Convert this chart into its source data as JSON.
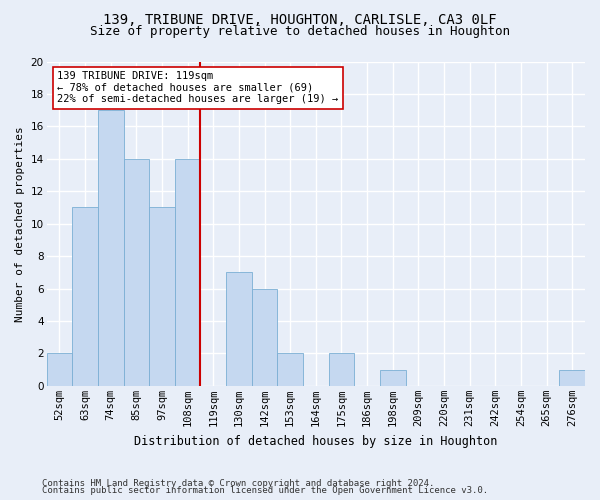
{
  "title1": "139, TRIBUNE DRIVE, HOUGHTON, CARLISLE, CA3 0LF",
  "title2": "Size of property relative to detached houses in Houghton",
  "xlabel": "Distribution of detached houses by size in Houghton",
  "ylabel": "Number of detached properties",
  "categories": [
    "52sqm",
    "63sqm",
    "74sqm",
    "85sqm",
    "97sqm",
    "108sqm",
    "119sqm",
    "130sqm",
    "142sqm",
    "153sqm",
    "164sqm",
    "175sqm",
    "186sqm",
    "198sqm",
    "209sqm",
    "220sqm",
    "231sqm",
    "242sqm",
    "254sqm",
    "265sqm",
    "276sqm"
  ],
  "values": [
    2,
    11,
    17,
    14,
    11,
    14,
    0,
    7,
    6,
    2,
    0,
    2,
    0,
    1,
    0,
    0,
    0,
    0,
    0,
    0,
    1
  ],
  "bar_color": "#c5d8f0",
  "bar_edge_color": "#7bafd4",
  "highlight_index": 6,
  "highlight_line_color": "#cc0000",
  "annotation_line1": "139 TRIBUNE DRIVE: 119sqm",
  "annotation_line2": "← 78% of detached houses are smaller (69)",
  "annotation_line3": "22% of semi-detached houses are larger (19) →",
  "annotation_box_color": "white",
  "annotation_box_edge_color": "#cc0000",
  "ylim": [
    0,
    20
  ],
  "yticks": [
    0,
    2,
    4,
    6,
    8,
    10,
    12,
    14,
    16,
    18,
    20
  ],
  "footer1": "Contains HM Land Registry data © Crown copyright and database right 2024.",
  "footer2": "Contains public sector information licensed under the Open Government Licence v3.0.",
  "bg_color": "#e8eef8",
  "grid_color": "white",
  "title1_fontsize": 10,
  "title2_fontsize": 9,
  "xlabel_fontsize": 8.5,
  "ylabel_fontsize": 8,
  "tick_fontsize": 7.5,
  "annotation_fontsize": 7.5,
  "footer_fontsize": 6.5
}
